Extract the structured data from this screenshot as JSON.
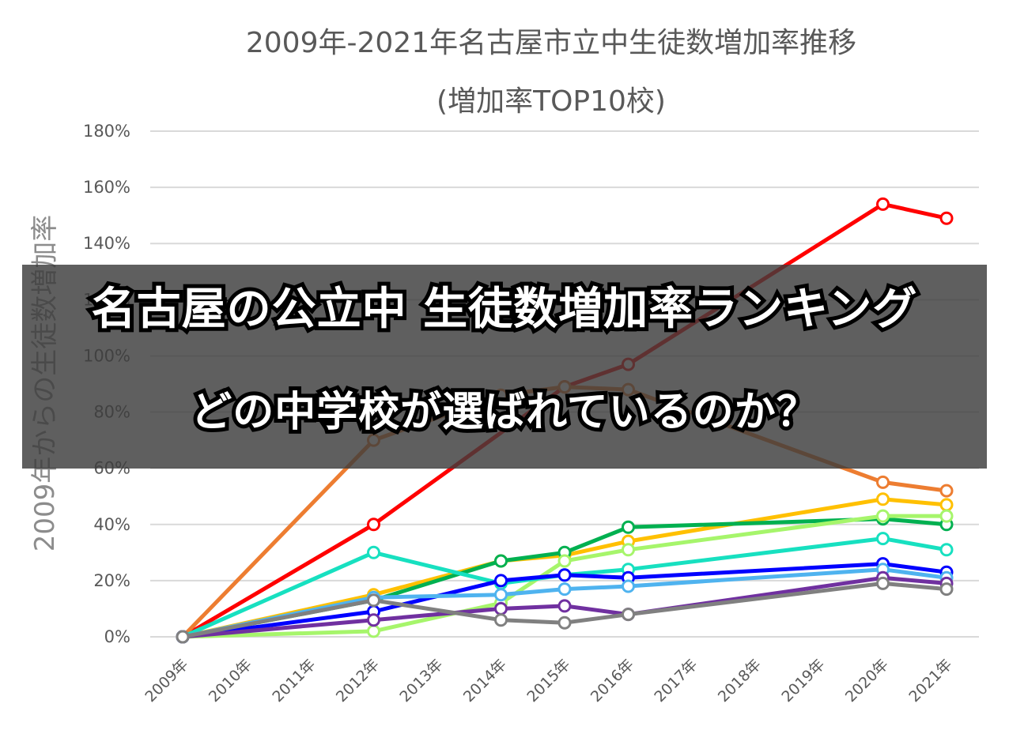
{
  "banner": {
    "line1": "名古屋の公立中 生徒数増加率ランキング",
    "line2": "どの中学校が選ばれているのか？"
  },
  "chart_data": {
    "type": "line",
    "title": "2009年-2021年名古屋市立中生徒数増加率推移",
    "subtitle": "(増加率TOP10校)",
    "xlabel": "",
    "ylabel": "2009年からの生徒数増加率",
    "x": [
      "2009年",
      "2010年",
      "2011年",
      "2012年",
      "2013年",
      "2014年",
      "2015年",
      "2016年",
      "2017年",
      "2018年",
      "2019年",
      "2020年",
      "2021年"
    ],
    "yticks": [
      "0%",
      "20%",
      "40%",
      "60%",
      "80%",
      "100%",
      "120%",
      "140%",
      "160%",
      "180%"
    ],
    "ylim": [
      0,
      180
    ],
    "grid": true,
    "legend": "none",
    "series": [
      {
        "color": "#ff0000",
        "points": [
          [
            "2009年",
            0
          ],
          [
            "2012年",
            40
          ],
          [
            "2015年",
            89
          ],
          [
            "2016年",
            97
          ],
          [
            "2020年",
            154
          ],
          [
            "2021年",
            149
          ]
        ]
      },
      {
        "color": "#ed7d31",
        "points": [
          [
            "2009年",
            0
          ],
          [
            "2012年",
            70
          ],
          [
            "2014年",
            86
          ],
          [
            "2015年",
            89
          ],
          [
            "2016年",
            88
          ],
          [
            "2020年",
            55
          ],
          [
            "2021年",
            52
          ]
        ]
      },
      {
        "color": "#ffc000",
        "points": [
          [
            "2009年",
            0
          ],
          [
            "2012年",
            15
          ],
          [
            "2014年",
            27
          ],
          [
            "2015年",
            29
          ],
          [
            "2016年",
            34
          ],
          [
            "2020年",
            49
          ],
          [
            "2021年",
            47
          ]
        ]
      },
      {
        "color": "#00b050",
        "points": [
          [
            "2009年",
            0
          ],
          [
            "2012年",
            13
          ],
          [
            "2014年",
            27
          ],
          [
            "2015年",
            30
          ],
          [
            "2016年",
            39
          ],
          [
            "2020年",
            42
          ],
          [
            "2021年",
            40
          ]
        ]
      },
      {
        "color": "#a6f56b",
        "points": [
          [
            "2009年",
            0
          ],
          [
            "2012年",
            2
          ],
          [
            "2014年",
            12
          ],
          [
            "2015年",
            27
          ],
          [
            "2016年",
            31
          ],
          [
            "2020年",
            43
          ],
          [
            "2021年",
            43
          ]
        ]
      },
      {
        "color": "#17e0c0",
        "points": [
          [
            "2009年",
            0
          ],
          [
            "2012年",
            30
          ],
          [
            "2014年",
            19
          ],
          [
            "2015年",
            22
          ],
          [
            "2016年",
            24
          ],
          [
            "2020年",
            35
          ],
          [
            "2021年",
            31
          ]
        ]
      },
      {
        "color": "#0000ff",
        "points": [
          [
            "2009年",
            0
          ],
          [
            "2012年",
            9
          ],
          [
            "2014年",
            20
          ],
          [
            "2015年",
            22
          ],
          [
            "2016年",
            21
          ],
          [
            "2020年",
            26
          ],
          [
            "2021年",
            23
          ]
        ]
      },
      {
        "color": "#4fb3ef",
        "points": [
          [
            "2009年",
            0
          ],
          [
            "2012年",
            14
          ],
          [
            "2014年",
            15
          ],
          [
            "2015年",
            17
          ],
          [
            "2016年",
            18
          ],
          [
            "2020年",
            24
          ],
          [
            "2021年",
            21
          ]
        ]
      },
      {
        "color": "#7030a0",
        "points": [
          [
            "2009年",
            0
          ],
          [
            "2012年",
            6
          ],
          [
            "2014年",
            10
          ],
          [
            "2015年",
            11
          ],
          [
            "2016年",
            8
          ],
          [
            "2020年",
            21
          ],
          [
            "2021年",
            19
          ]
        ]
      },
      {
        "color": "#808080",
        "points": [
          [
            "2009年",
            0
          ],
          [
            "2012年",
            13
          ],
          [
            "2014年",
            6
          ],
          [
            "2015年",
            5
          ],
          [
            "2016年",
            8
          ],
          [
            "2020年",
            19
          ],
          [
            "2021年",
            17
          ]
        ]
      }
    ]
  }
}
